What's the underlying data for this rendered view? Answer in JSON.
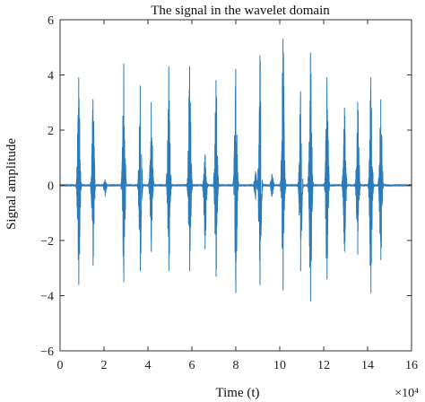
{
  "chart_data": {
    "type": "line",
    "title": "The signal in the wavelet domain",
    "xlabel": "Time (t)",
    "ylabel": "Signal amplitude",
    "x_multiplier": "×10⁴",
    "xlim": [
      0,
      16
    ],
    "ylim": [
      -6,
      6
    ],
    "xticks": [
      0,
      2,
      4,
      6,
      8,
      10,
      12,
      14,
      16
    ],
    "yticks": [
      -6,
      -4,
      -2,
      0,
      2,
      4,
      6
    ],
    "grid": false,
    "line_color": "#2b7bba",
    "bursts": [
      {
        "t": 0.85,
        "max": 3.9,
        "min": -3.6
      },
      {
        "t": 1.5,
        "max": 3.1,
        "min": -2.9
      },
      {
        "t": 2.05,
        "max": 0.2,
        "min": -0.4
      },
      {
        "t": 2.9,
        "max": 4.4,
        "min": -3.5
      },
      {
        "t": 3.65,
        "max": 3.6,
        "min": -3.1
      },
      {
        "t": 4.15,
        "max": 3.0,
        "min": -2.4
      },
      {
        "t": 4.95,
        "max": 4.3,
        "min": -3.1
      },
      {
        "t": 5.9,
        "max": 4.3,
        "min": -3.1
      },
      {
        "t": 6.6,
        "max": 1.1,
        "min": -2.3
      },
      {
        "t": 7.1,
        "max": 3.8,
        "min": -3.3
      },
      {
        "t": 8.0,
        "max": 4.2,
        "min": -3.9
      },
      {
        "t": 8.9,
        "max": 0.5,
        "min": -0.5
      },
      {
        "t": 9.1,
        "max": 4.7,
        "min": -3.6
      },
      {
        "t": 9.65,
        "max": 0.4,
        "min": -0.4
      },
      {
        "t": 10.15,
        "max": 5.3,
        "min": -3.8
      },
      {
        "t": 10.95,
        "max": 3.4,
        "min": -3.1
      },
      {
        "t": 11.4,
        "max": 4.8,
        "min": -4.2
      },
      {
        "t": 12.15,
        "max": 3.9,
        "min": -3.4
      },
      {
        "t": 12.95,
        "max": 2.8,
        "min": -2.4
      },
      {
        "t": 13.55,
        "max": 3.0,
        "min": -2.5
      },
      {
        "t": 14.15,
        "max": 3.9,
        "min": -3.9
      },
      {
        "t": 14.6,
        "max": 3.1,
        "min": -2.7
      }
    ]
  }
}
